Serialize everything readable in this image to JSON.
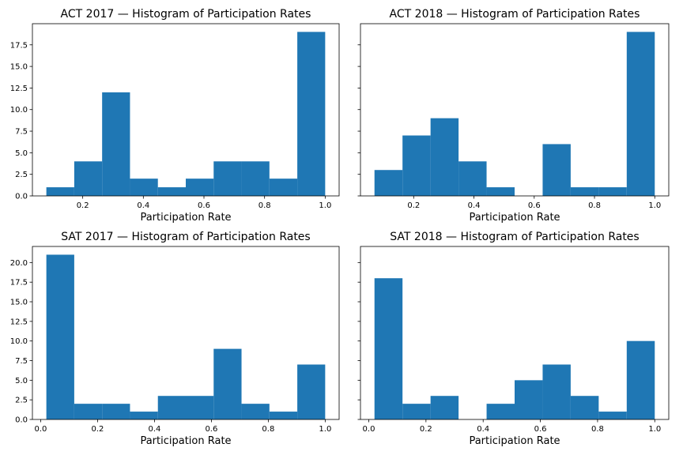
{
  "chart_data": [
    {
      "type": "bar",
      "subtype": "histogram",
      "title": "ACT 2017 — Histogram of Participation Rates",
      "xlabel": "Participation Rate",
      "ylabel": "",
      "bin_range": [
        0.08,
        1.0
      ],
      "values": [
        1,
        4,
        12,
        2,
        1,
        2,
        4,
        4,
        2,
        19
      ],
      "xlim": [
        0.034,
        1.046
      ],
      "ylim": [
        0,
        19.95
      ],
      "xticks": [
        0.2,
        0.4,
        0.6,
        0.8,
        1.0
      ],
      "xtick_labels": [
        "0.2",
        "0.4",
        "0.6",
        "0.8",
        "1.0"
      ],
      "yticks": [
        0,
        2.5,
        5,
        7.5,
        10,
        12.5,
        15,
        17.5
      ],
      "ytick_labels": [
        "0.0",
        "2.5",
        "5.0",
        "7.5",
        "10.0",
        "12.5",
        "15.0",
        "17.5"
      ],
      "show_yticklabels": true,
      "color": "#1f77b4",
      "grid": false
    },
    {
      "type": "bar",
      "subtype": "histogram",
      "title": "ACT 2018 — Histogram of Participation Rates",
      "xlabel": "Participation Rate",
      "ylabel": "",
      "bin_range": [
        0.07,
        1.0
      ],
      "values": [
        3,
        7,
        9,
        4,
        1,
        0,
        6,
        1,
        1,
        19
      ],
      "xlim": [
        0.0235,
        1.0465
      ],
      "ylim": [
        0,
        19.95
      ],
      "xticks": [
        0.2,
        0.4,
        0.6,
        0.8,
        1.0
      ],
      "xtick_labels": [
        "0.2",
        "0.4",
        "0.6",
        "0.8",
        "1.0"
      ],
      "yticks": [
        0,
        2.5,
        5,
        7.5,
        10,
        12.5,
        15,
        17.5
      ],
      "ytick_labels": [],
      "show_yticklabels": false,
      "color": "#1f77b4",
      "grid": false
    },
    {
      "type": "bar",
      "subtype": "histogram",
      "title": "SAT 2017 — Histogram of Participation Rates",
      "xlabel": "Participation Rate",
      "ylabel": "",
      "bin_range": [
        0.02,
        1.0
      ],
      "values": [
        21,
        2,
        2,
        1,
        3,
        3,
        9,
        2,
        1,
        7
      ],
      "xlim": [
        -0.029,
        1.049
      ],
      "ylim": [
        0,
        22.05
      ],
      "xticks": [
        0.0,
        0.2,
        0.4,
        0.6,
        0.8,
        1.0
      ],
      "xtick_labels": [
        "0.0",
        "0.2",
        "0.4",
        "0.6",
        "0.8",
        "1.0"
      ],
      "yticks": [
        0,
        2.5,
        5,
        7.5,
        10,
        12.5,
        15,
        17.5,
        20
      ],
      "ytick_labels": [
        "0.0",
        "2.5",
        "5.0",
        "7.5",
        "10.0",
        "12.5",
        "15.0",
        "17.5",
        "20.0"
      ],
      "show_yticklabels": true,
      "color": "#1f77b4",
      "grid": false
    },
    {
      "type": "bar",
      "subtype": "histogram",
      "title": "SAT 2018 — Histogram of Participation Rates",
      "xlabel": "Participation Rate",
      "ylabel": "",
      "bin_range": [
        0.02,
        1.0
      ],
      "values": [
        18,
        2,
        3,
        0,
        2,
        5,
        7,
        3,
        1,
        10
      ],
      "xlim": [
        -0.029,
        1.049
      ],
      "ylim": [
        0,
        22.05
      ],
      "xticks": [
        0.0,
        0.2,
        0.4,
        0.6,
        0.8,
        1.0
      ],
      "xtick_labels": [
        "0.0",
        "0.2",
        "0.4",
        "0.6",
        "0.8",
        "1.0"
      ],
      "yticks": [
        0,
        2.5,
        5,
        7.5,
        10,
        12.5,
        15,
        17.5,
        20
      ],
      "ytick_labels": [],
      "show_yticklabels": false,
      "color": "#1f77b4",
      "grid": false
    }
  ]
}
